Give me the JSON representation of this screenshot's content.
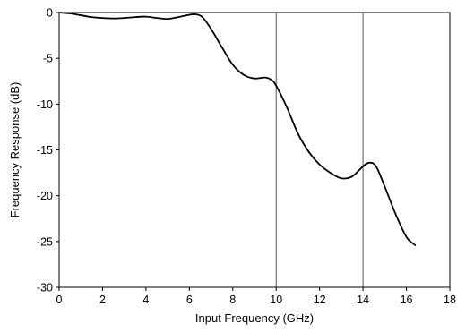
{
  "chart_data": {
    "type": "line",
    "title": "",
    "xlabel": "Input Frequency (GHz)",
    "ylabel": "Frequency Response (dB)",
    "xlim": [
      0,
      18
    ],
    "ylim": [
      -30,
      0
    ],
    "xticks": [
      0,
      2,
      4,
      6,
      8,
      10,
      12,
      14,
      16,
      18
    ],
    "yticks": [
      0,
      -5,
      -10,
      -15,
      -20,
      -25,
      -30
    ],
    "xtick_labels": [
      "0",
      "2",
      "4",
      "6",
      "8",
      "10",
      "12",
      "14",
      "16",
      "18"
    ],
    "ytick_labels": [
      "0",
      "-5",
      "-10",
      "-15",
      "-20",
      "-25",
      "-30"
    ],
    "grid": "vertical lines at 10 and 14 GHz only",
    "grid_x": [
      10,
      14
    ],
    "legend": "none",
    "line_color": "#000000",
    "series": [
      {
        "x": [
          0,
          0.5,
          1,
          1.5,
          2,
          2.5,
          3,
          3.5,
          4,
          4.5,
          5,
          5.5,
          6,
          6.3,
          6.6,
          7,
          7.5,
          8,
          8.5,
          9,
          9.5,
          9.8,
          10,
          10.5,
          11,
          11.5,
          12,
          12.5,
          13,
          13.5,
          14,
          14.3,
          14.6,
          15,
          15.5,
          16,
          16.4
        ],
        "y": [
          0,
          -0.1,
          -0.3,
          -0.5,
          -0.6,
          -0.65,
          -0.6,
          -0.5,
          -0.45,
          -0.6,
          -0.7,
          -0.5,
          -0.25,
          -0.2,
          -0.5,
          -1.8,
          -3.8,
          -5.7,
          -6.8,
          -7.2,
          -7.1,
          -7.4,
          -8.0,
          -10.4,
          -13.2,
          -15.2,
          -16.6,
          -17.5,
          -18.1,
          -17.9,
          -16.8,
          -16.4,
          -16.8,
          -19.0,
          -22.0,
          -24.5,
          -25.4
        ]
      }
    ]
  }
}
